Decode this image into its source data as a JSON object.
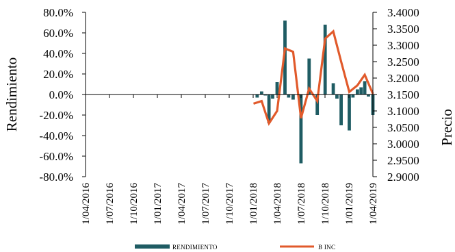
{
  "chart_data": {
    "type": "bar+line",
    "title": "",
    "ylabel_left": "Rendimiento",
    "ylabel_right": "Precio",
    "ylim_left": [
      -0.8,
      0.8
    ],
    "ylim_right": [
      2.9,
      3.4
    ],
    "yticks_left": [
      "80.0%",
      "60.0%",
      "40.0%",
      "20.0%",
      "0.0%",
      "-20.0%",
      "-40.0%",
      "-60.0%",
      "-80.0%"
    ],
    "yticks_right": [
      "3.4000",
      "3.3500",
      "3.3000",
      "3.2500",
      "3.2000",
      "3.1500",
      "3.1000",
      "3.0500",
      "3.0000",
      "2.9500",
      "2.9000"
    ],
    "xticks": [
      "1/04/2016",
      "1/07/2016",
      "1/10/2016",
      "1/01/2017",
      "1/04/2017",
      "1/07/2017",
      "1/10/2017",
      "1/01/2018",
      "1/04/2018",
      "1/07/2018",
      "1/10/2018",
      "1/01/2019",
      "1/04/2019"
    ],
    "x_range": [
      "2016-04-01",
      "2019-04-01"
    ],
    "grid": false,
    "legend_position": "bottom",
    "colors": {
      "bars": "#1f5c63",
      "line": "#e15a2b"
    },
    "series": [
      {
        "name": "RENDIMIENTO",
        "type": "bar",
        "points": [
          [
            "2018-01-15",
            -0.03
          ],
          [
            "2018-02-01",
            0.03
          ],
          [
            "2018-02-15",
            -0.01
          ],
          [
            "2018-03-01",
            -0.28
          ],
          [
            "2018-03-15",
            -0.04
          ],
          [
            "2018-04-01",
            0.12
          ],
          [
            "2018-04-15",
            0.0
          ],
          [
            "2018-05-01",
            0.72
          ],
          [
            "2018-05-15",
            -0.03
          ],
          [
            "2018-06-01",
            -0.05
          ],
          [
            "2018-06-15",
            0.0
          ],
          [
            "2018-07-01",
            -0.67
          ],
          [
            "2018-07-15",
            0.0
          ],
          [
            "2018-08-01",
            0.35
          ],
          [
            "2018-08-15",
            0.0
          ],
          [
            "2018-09-01",
            -0.2
          ],
          [
            "2018-09-15",
            0.0
          ],
          [
            "2018-10-01",
            0.68
          ],
          [
            "2018-10-15",
            0.0
          ],
          [
            "2018-11-01",
            0.11
          ],
          [
            "2018-11-15",
            -0.04
          ],
          [
            "2018-12-01",
            -0.3
          ],
          [
            "2018-12-15",
            0.0
          ],
          [
            "2019-01-01",
            -0.35
          ],
          [
            "2019-01-15",
            -0.03
          ],
          [
            "2019-02-01",
            0.05
          ],
          [
            "2019-02-15",
            0.07
          ],
          [
            "2019-03-01",
            0.13
          ],
          [
            "2019-03-15",
            -0.02
          ],
          [
            "2019-04-01",
            -0.2
          ]
        ]
      },
      {
        "name": "B INC",
        "type": "line",
        "points": [
          [
            "2018-01-01",
            3.122
          ],
          [
            "2018-02-01",
            3.13
          ],
          [
            "2018-03-01",
            3.062
          ],
          [
            "2018-04-01",
            3.1
          ],
          [
            "2018-05-01",
            3.29
          ],
          [
            "2018-06-01",
            3.28
          ],
          [
            "2018-07-01",
            3.078
          ],
          [
            "2018-08-01",
            3.168
          ],
          [
            "2018-09-01",
            3.13
          ],
          [
            "2018-10-01",
            3.32
          ],
          [
            "2018-11-01",
            3.342
          ],
          [
            "2018-12-01",
            3.25
          ],
          [
            "2019-01-01",
            3.158
          ],
          [
            "2019-02-01",
            3.178
          ],
          [
            "2019-03-01",
            3.21
          ],
          [
            "2019-04-01",
            3.152
          ]
        ]
      }
    ]
  }
}
